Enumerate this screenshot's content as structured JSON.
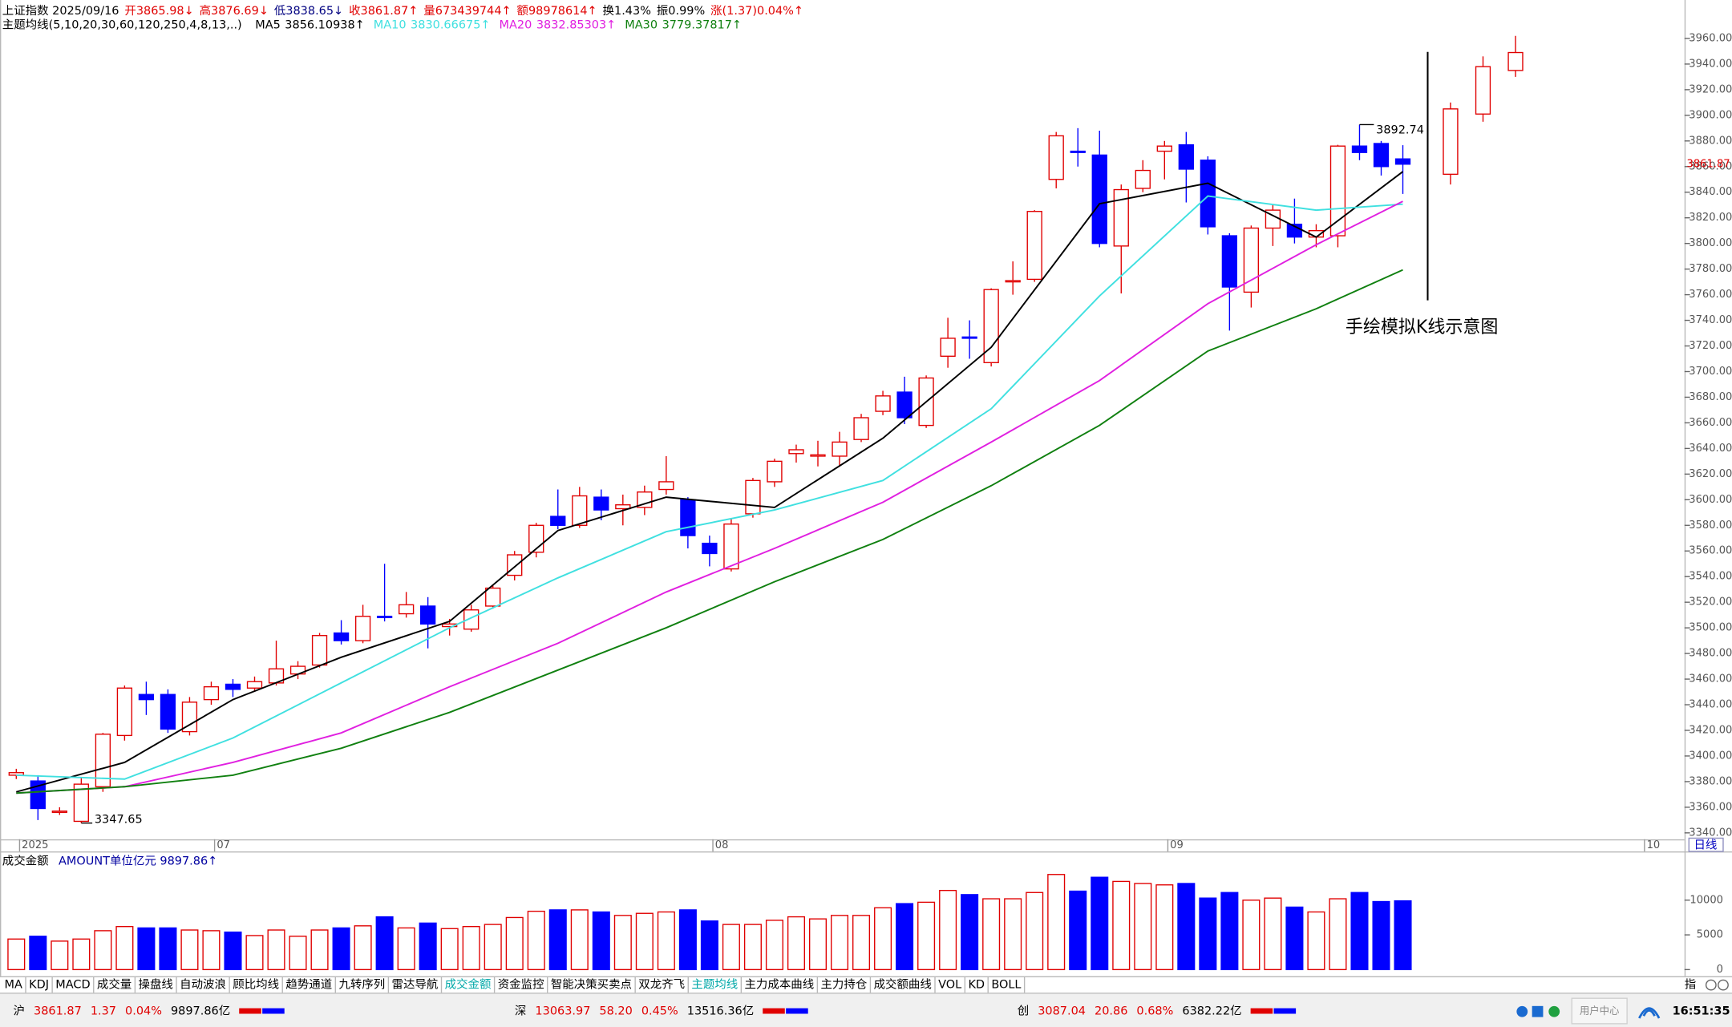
{
  "header": {
    "quote_items": [
      {
        "text": "上证指数 2025/09/16",
        "color": "#000000"
      },
      {
        "text": "开3865.98↓",
        "color": "#e00000"
      },
      {
        "text": "高3876.69↓",
        "color": "#e00000"
      },
      {
        "text": "低3838.65↓",
        "color": "#000080"
      },
      {
        "text": "收3861.87↑",
        "color": "#e00000"
      },
      {
        "text": "量673439744↑",
        "color": "#e00000"
      },
      {
        "text": "额98978614↑",
        "color": "#e00000"
      },
      {
        "text": "换1.43%",
        "color": "#000000"
      },
      {
        "text": "振0.99%",
        "color": "#000000"
      },
      {
        "text": "涨(1.37)0.04%↑",
        "color": "#e00000"
      }
    ],
    "indicator_title": "主题均线(5,10,20,30,60,120,250,4,8,13,..)"
  },
  "chart_data": [
    {
      "type": "candlestick",
      "x": [
        0,
        1,
        2,
        3,
        4,
        5,
        6,
        7,
        8,
        9,
        10,
        11,
        12,
        13,
        14,
        15,
        16,
        17,
        18,
        19,
        20,
        21,
        22,
        23,
        24,
        25,
        26,
        27,
        28,
        29,
        30,
        31,
        32,
        33,
        34,
        35,
        36,
        37,
        38,
        39,
        40,
        41,
        42,
        43,
        44,
        45,
        46,
        47,
        48,
        49,
        50,
        51,
        52,
        53,
        54,
        55,
        56,
        57,
        58,
        59,
        60,
        61,
        62,
        63,
        64
      ],
      "open": [
        3385,
        3380.5,
        3356,
        3349,
        3376,
        3416,
        3448,
        3448,
        3419,
        3444,
        3456,
        3453,
        3457,
        3464,
        3471,
        3496,
        3490,
        3509,
        3511,
        3517,
        3501,
        3499,
        3517,
        3541,
        3559,
        3587,
        3580,
        3602,
        3593,
        3594,
        3608,
        3600,
        3566,
        3546,
        3589,
        3614,
        3636,
        3634,
        3634,
        3647,
        3669,
        3684,
        3658,
        3712,
        3727,
        3707,
        3770,
        3772,
        3850,
        3872,
        3869,
        3798,
        3843,
        3872,
        3877,
        3865,
        3806,
        3762,
        3812,
        3815,
        3805,
        3806,
        3876,
        3878,
        3865.98
      ],
      "high": [
        3390,
        3385,
        3360,
        3383,
        3418,
        3455,
        3458,
        3452,
        3446,
        3458,
        3460,
        3462,
        3490,
        3474,
        3496,
        3506,
        3518,
        3550,
        3528,
        3524,
        3507,
        3518,
        3533,
        3560,
        3582,
        3608,
        3610,
        3608,
        3604,
        3611,
        3634,
        3602,
        3572,
        3585,
        3617,
        3632,
        3643,
        3646,
        3653,
        3667,
        3685,
        3696,
        3697,
        3742,
        3740,
        3765,
        3786,
        3826,
        3887,
        3890,
        3888,
        3846,
        3865,
        3880,
        3887,
        3868,
        3808,
        3814,
        3830,
        3835,
        3815,
        3877,
        3892.74,
        3880,
        3876.69
      ],
      "low": [
        3382,
        3350,
        3354,
        3347.65,
        3372,
        3412,
        3432,
        3418,
        3416,
        3440,
        3446,
        3450,
        3455,
        3460,
        3469,
        3487,
        3488,
        3505,
        3508,
        3484,
        3494,
        3497,
        3515,
        3537,
        3555,
        3577,
        3578,
        3584,
        3580,
        3588,
        3604,
        3562,
        3548,
        3544,
        3586,
        3610,
        3629,
        3626,
        3626,
        3645,
        3666,
        3659,
        3656,
        3703,
        3710,
        3704,
        3760,
        3770,
        3843,
        3860,
        3797,
        3761,
        3840,
        3850,
        3832,
        3807,
        3732,
        3750,
        3798,
        3800,
        3797,
        3797,
        3865,
        3853,
        3838.65
      ],
      "close": [
        3387,
        3359,
        3357,
        3378,
        3417,
        3453,
        3444,
        3421,
        3442,
        3454,
        3452,
        3458,
        3468,
        3470,
        3494,
        3490,
        3509,
        3508,
        3518,
        3503,
        3503,
        3514,
        3531,
        3557,
        3580,
        3580,
        3603,
        3592,
        3596,
        3606,
        3614,
        3572,
        3558,
        3581,
        3615,
        3630,
        3639,
        3635,
        3645,
        3664,
        3681,
        3664,
        3695,
        3726,
        3726,
        3764,
        3771,
        3825,
        3884,
        3871,
        3800,
        3842,
        3857,
        3876,
        3858,
        3813,
        3766,
        3812,
        3826,
        3805,
        3810,
        3876,
        3871,
        3860,
        3861.87
      ],
      "up_color": "#e00000",
      "down_color": "#0000ff",
      "xlim": [
        -0.7,
        77
      ],
      "xticks": [
        {
          "value": 0,
          "label": "2025"
        },
        {
          "value": 9,
          "label": "07"
        },
        {
          "value": 32,
          "label": "08"
        },
        {
          "value": 53,
          "label": "09"
        },
        {
          "value": 75,
          "label": "10"
        }
      ],
      "ylim": [
        3335,
        3990
      ],
      "yticks": [
        {
          "value": 3340,
          "label": "3340.00"
        },
        {
          "value": 3360,
          "label": "3360.00"
        },
        {
          "value": 3380,
          "label": "3380.00"
        },
        {
          "value": 3400,
          "label": "3400.00"
        },
        {
          "value": 3420,
          "label": "3420.00"
        },
        {
          "value": 3440,
          "label": "3440.00"
        },
        {
          "value": 3460,
          "label": "3460.00"
        },
        {
          "value": 3480,
          "label": "3480.00"
        },
        {
          "value": 3500,
          "label": "3500.00"
        },
        {
          "value": 3520,
          "label": "3520.00"
        },
        {
          "value": 3540,
          "label": "3540.00"
        },
        {
          "value": 3560,
          "label": "3560.00"
        },
        {
          "value": 3580,
          "label": "3580.00"
        },
        {
          "value": 3600,
          "label": "3600.00"
        },
        {
          "value": 3620,
          "label": "3620.00"
        },
        {
          "value": 3640,
          "label": "3640.00"
        },
        {
          "value": 3660,
          "label": "3660.00"
        },
        {
          "value": 3680,
          "label": "3680.00"
        },
        {
          "value": 3700,
          "label": "3700.00"
        },
        {
          "value": 3720,
          "label": "3720.00"
        },
        {
          "value": 3740,
          "label": "3740.00"
        },
        {
          "value": 3760,
          "label": "3760.00"
        },
        {
          "value": 3780,
          "label": "3780.00"
        },
        {
          "value": 3800,
          "label": "3800.00"
        },
        {
          "value": 3820,
          "label": "3820.00"
        },
        {
          "value": 3840,
          "label": "3840.00"
        },
        {
          "value": 3860,
          "label": "3860.00"
        },
        {
          "value": 3880,
          "label": "3880.00"
        },
        {
          "value": 3900,
          "label": "3900.00"
        },
        {
          "value": 3920,
          "label": "3920.00"
        },
        {
          "value": 3940,
          "label": "3940.00"
        },
        {
          "value": 3960,
          "label": "3960.00"
        }
      ],
      "grid": false,
      "lines": [
        {
          "name": "MA5",
          "value_label": "3856.10938↑",
          "color": "#000000",
          "x": [
            0,
            5,
            10,
            15,
            20,
            25,
            30,
            35,
            40,
            45,
            50,
            55,
            60,
            64
          ],
          "values": [
            3372,
            3395,
            3444,
            3477,
            3505,
            3576,
            3602,
            3594,
            3648,
            3719,
            3831,
            3847,
            3805,
            3856.11
          ]
        },
        {
          "name": "MA10",
          "value_label": "3830.66675↑",
          "color": "#40e0e0",
          "x": [
            0,
            5,
            10,
            15,
            20,
            25,
            30,
            35,
            40,
            45,
            50,
            55,
            60,
            64
          ],
          "values": [
            3385,
            3382,
            3414,
            3457,
            3500,
            3539,
            3575,
            3592,
            3615,
            3671,
            3759,
            3837,
            3826,
            3830.67
          ]
        },
        {
          "name": "MA20",
          "value_label": "3832.85303↑",
          "color": "#e020e0",
          "x": [
            0,
            5,
            10,
            15,
            20,
            25,
            30,
            35,
            40,
            45,
            50,
            55,
            60,
            64
          ],
          "values": [
            3371,
            3376,
            3395,
            3418,
            3454,
            3488,
            3528,
            3562,
            3598,
            3645,
            3693,
            3753,
            3799,
            3832.85
          ]
        },
        {
          "name": "MA30",
          "value_label": "3779.37817↑",
          "color": "#108010",
          "x": [
            0,
            5,
            10,
            15,
            20,
            25,
            30,
            35,
            40,
            45,
            50,
            55,
            60,
            64
          ],
          "values": [
            3371,
            3376,
            3385,
            3406,
            3434,
            3467,
            3500,
            3536,
            3569,
            3611,
            3658,
            3716,
            3749,
            3779.38
          ]
        }
      ],
      "sketch": {
        "x": [
          66.2,
          67.7,
          69.2
        ],
        "open": [
          3854,
          3901,
          3935
        ],
        "high": [
          3910,
          3946,
          3962
        ],
        "low": [
          3846,
          3895,
          3930
        ],
        "close": [
          3905,
          3938,
          3949
        ]
      },
      "annotation": "手绘模拟K线示意图"
    },
    {
      "type": "bar",
      "title": "成交金额",
      "subtitle": "AMOUNT单位亿元 9897.86↑",
      "values": [
        4400,
        4800,
        4100,
        4400,
        5600,
        6200,
        6000,
        6000,
        5700,
        5600,
        5400,
        4900,
        5700,
        4800,
        5700,
        6000,
        6300,
        7600,
        6000,
        6700,
        5900,
        6200,
        6500,
        7500,
        8400,
        8600,
        8600,
        8300,
        7800,
        8100,
        8300,
        8600,
        7000,
        6500,
        6500,
        7100,
        7600,
        7300,
        7800,
        7800,
        8900,
        9500,
        9700,
        11400,
        10800,
        10200,
        10200,
        11100,
        13700,
        11300,
        13300,
        12700,
        12400,
        12200,
        12400,
        10300,
        11100,
        10000,
        10300,
        9000,
        8300,
        10200,
        11100,
        9800,
        9897.86
      ],
      "ylim": [
        0,
        14000
      ],
      "yticks": [
        0,
        5000,
        10000
      ]
    }
  ],
  "period": "日线",
  "tabs": [
    "MA",
    "KDJ",
    "MACD",
    "成交量",
    "操盘线",
    "自动波浪",
    "顾比均线",
    "趋势通道",
    "九转序列",
    "雷达导航",
    "成交金额",
    "资金监控",
    "智能决策买卖点",
    "双龙齐飞",
    "主题均线",
    "主力成本曲线",
    "主力持仓",
    "成交额曲线",
    "VOL",
    "KD",
    "BOLL"
  ],
  "highlighted_tabs": [
    10,
    14
  ],
  "highlight_color": "#00a8a8",
  "right_tab": "指",
  "status_bar": {
    "markets": [
      {
        "name": "沪",
        "price": "3861.87",
        "change": "1.37",
        "percent": "0.04%",
        "amount": "9897.86亿"
      },
      {
        "name": "深",
        "price": "13063.97",
        "change": "58.20",
        "percent": "0.45%",
        "amount": "13516.36亿"
      },
      {
        "name": "创",
        "price": "3087.04",
        "change": "20.86",
        "percent": "0.68%",
        "amount": "6382.22亿"
      }
    ],
    "user_center": "用户中心",
    "time": "16:51:35"
  }
}
